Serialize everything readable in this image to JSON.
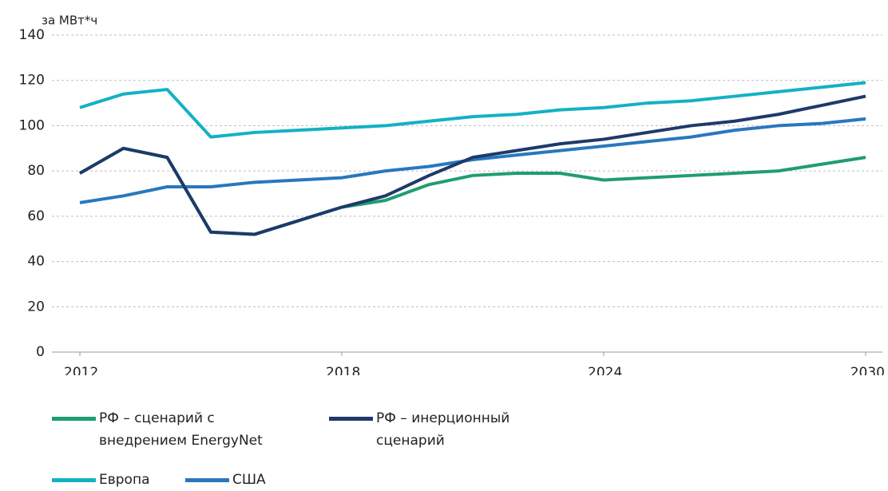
{
  "chart_data": {
    "type": "line",
    "y_label": "за МВт*ч",
    "x": [
      2012,
      2013,
      2014,
      2015,
      2016,
      2017,
      2018,
      2019,
      2020,
      2021,
      2022,
      2023,
      2024,
      2025,
      2026,
      2027,
      2028,
      2029,
      2030
    ],
    "xlim": [
      2012,
      2030
    ],
    "xticks": [
      2012,
      2018,
      2024,
      2030
    ],
    "ylim": [
      0,
      140
    ],
    "yticks": [
      0,
      20,
      40,
      60,
      80,
      100,
      120,
      140
    ],
    "grid": true,
    "series": [
      {
        "name": "РФ – сценарий с внедрением EnergyNet",
        "color": "#1f9e6e",
        "values": [
          79,
          90,
          86,
          53,
          52,
          58,
          64,
          67,
          74,
          78,
          79,
          79,
          76,
          77,
          78,
          79,
          80,
          83,
          86
        ]
      },
      {
        "name": "РФ – инерционный сценарий",
        "color": "#1e3a6a",
        "values": [
          79,
          90,
          86,
          53,
          52,
          58,
          64,
          69,
          78,
          86,
          89,
          92,
          94,
          97,
          100,
          102,
          105,
          109,
          113
        ]
      },
      {
        "name": "Европа",
        "color": "#14b1c4",
        "values": [
          108,
          114,
          116,
          95,
          97,
          98,
          99,
          100,
          102,
          104,
          105,
          107,
          108,
          110,
          111,
          113,
          115,
          117,
          119
        ]
      },
      {
        "name": "США",
        "color": "#2878be",
        "values": [
          66,
          69,
          73,
          73,
          75,
          76,
          77,
          80,
          82,
          85,
          87,
          89,
          91,
          93,
          95,
          98,
          100,
          101,
          103
        ]
      }
    ]
  }
}
